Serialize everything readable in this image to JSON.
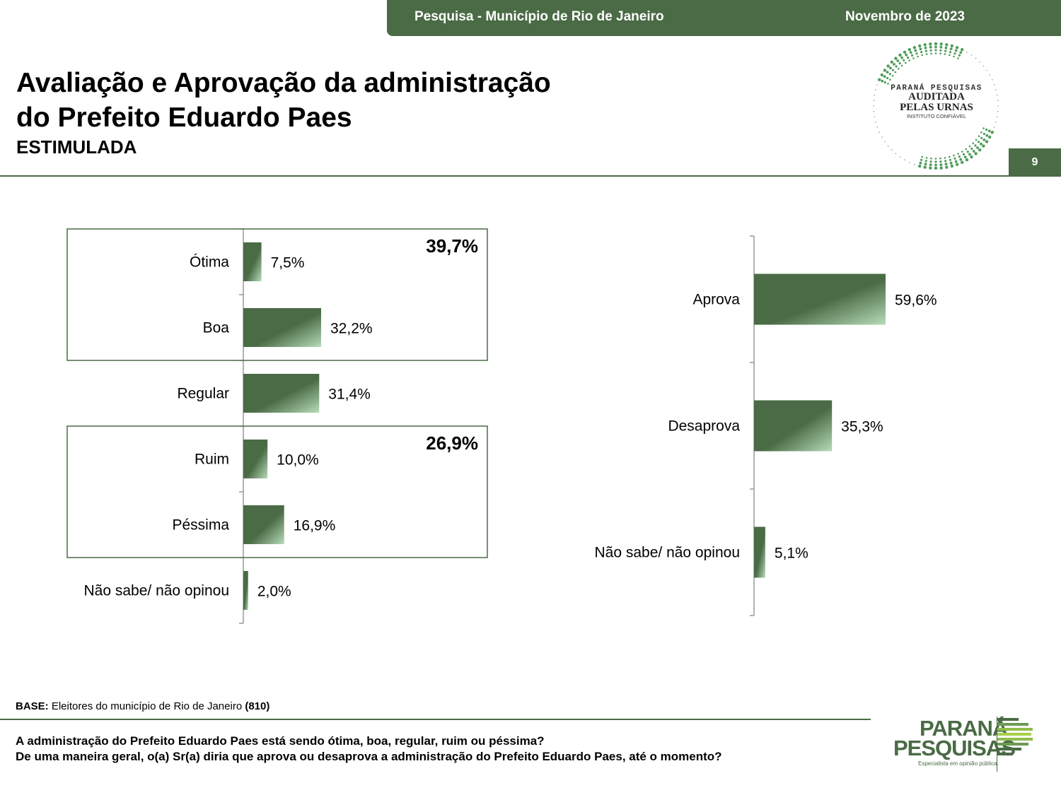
{
  "header": {
    "survey": "Pesquisa - Município de Rio de Janeiro",
    "date": "Novembro de 2023",
    "page_number": "9"
  },
  "title": {
    "line1": "Avaliação e Aprovação da administração",
    "line2": "do Prefeito Eduardo Paes",
    "subtitle": "ESTIMULADA"
  },
  "seal": {
    "line1": "PARANÁ PESQUISAS",
    "line2": "AUDITADA",
    "line3": "PELAS URNAS",
    "line4": "INSTITUTO CONFIÁVEL"
  },
  "colors": {
    "accent": "#4a6b45",
    "bar_dark": "#4a6b45",
    "bar_light": "#b7dcb9"
  },
  "chart_data": [
    {
      "type": "bar",
      "orientation": "horizontal",
      "categories": [
        "Ótima",
        "Boa",
        "Regular",
        "Ruim",
        "Péssima",
        "Não sabe/ não opinou"
      ],
      "values": [
        7.5,
        32.2,
        31.4,
        10.0,
        16.9,
        2.0
      ],
      "value_labels": [
        "7,5%",
        "32,2%",
        "31,4%",
        "10,0%",
        "16,9%",
        "2,0%"
      ],
      "groups": [
        {
          "categories": [
            "Ótima",
            "Boa"
          ],
          "total_label": "39,7%"
        },
        {
          "categories": [
            "Ruim",
            "Péssima"
          ],
          "total_label": "26,9%"
        }
      ]
    },
    {
      "type": "bar",
      "orientation": "horizontal",
      "categories": [
        "Aprova",
        "Desaprova",
        "Não sabe/ não opinou"
      ],
      "values": [
        59.6,
        35.3,
        5.1
      ],
      "value_labels": [
        "59,6%",
        "35,3%",
        "5,1%"
      ]
    }
  ],
  "footer": {
    "base_label": "BASE:",
    "base_text": "Eleitores do município de Rio de Janeiro",
    "base_count": "(810)",
    "question1": "A administração do Prefeito Eduardo Paes está sendo ótima, boa, regular, ruim ou péssima?",
    "question2": "De uma maneira geral, o(a) Sr(a) diria que aprova ou desaprova a administração do Prefeito Eduardo Paes, até o momento?"
  },
  "brand": {
    "name_line1": "PARANÁ",
    "name_line2": "PESQUISAS",
    "tagline": "Especialista em opinião pública."
  }
}
